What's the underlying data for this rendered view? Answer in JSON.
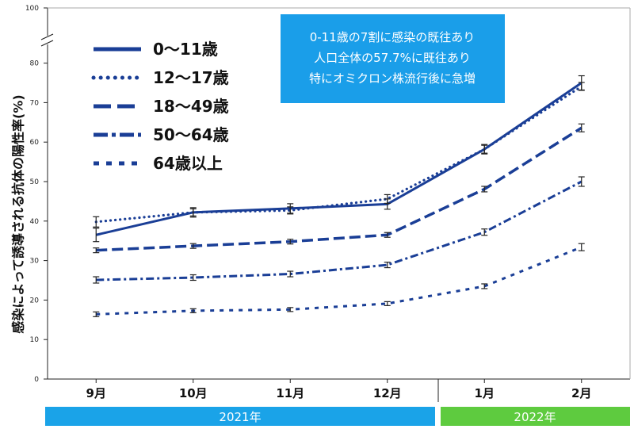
{
  "chart_data": {
    "type": "line",
    "ylabel": "感染によって誘導される抗体の陽性率(%)",
    "categories": [
      "9月",
      "10月",
      "11月",
      "12月",
      "1月",
      "2月"
    ],
    "y_ticks": [
      "0",
      "10",
      "20",
      "30",
      "40",
      "50",
      "60",
      "70",
      "80"
    ],
    "y_top_tick": "100",
    "ylim": [
      0,
      100
    ],
    "axis_break": true,
    "grid": false,
    "legend_position": "top-left",
    "series": [
      {
        "name": "0〜11歳",
        "style": "solid",
        "values": [
          36.5,
          42.2,
          43.2,
          44.3,
          58.2,
          75.0
        ],
        "errors": [
          1.7,
          1.2,
          1.2,
          1.3,
          1.2,
          1.8
        ]
      },
      {
        "name": "12〜17歳",
        "style": "dotted",
        "values": [
          39.8,
          42.2,
          42.7,
          45.6,
          58.2,
          74.1
        ],
        "errors": [
          1.3,
          0.9,
          0.9,
          1.1,
          1.0,
          1.0
        ]
      },
      {
        "name": "18〜49歳",
        "style": "long-dash",
        "values": [
          32.6,
          33.7,
          34.8,
          36.5,
          48.1,
          63.6
        ],
        "errors": [
          0.6,
          0.6,
          0.6,
          0.6,
          0.7,
          1.0
        ]
      },
      {
        "name": "50〜64歳",
        "style": "dash-dot",
        "values": [
          25.1,
          25.7,
          26.6,
          28.9,
          37.2,
          50.0
        ],
        "errors": [
          0.8,
          0.7,
          0.7,
          0.7,
          0.8,
          1.2
        ]
      },
      {
        "name": "64歳以上",
        "style": "short-dash",
        "values": [
          16.4,
          17.3,
          17.6,
          19.1,
          23.5,
          33.4
        ],
        "errors": [
          0.6,
          0.5,
          0.5,
          0.5,
          0.6,
          0.9
        ]
      }
    ],
    "series_color": "#1a3e96",
    "annotation": {
      "lines": [
        "0-11歳の7割に感染の既往あり",
        "人口全体の57.7%に既往あり",
        "特にオミクロン株流行後に急増"
      ],
      "background": "#1a9ee9",
      "text_color": "#ffffff"
    },
    "year_bands": [
      {
        "label": "2021年",
        "color": "#1aa3e8",
        "categories": [
          "9月",
          "10月",
          "11月",
          "12月"
        ]
      },
      {
        "label": "2022年",
        "color": "#5ecb3f",
        "categories": [
          "1月",
          "2月"
        ]
      }
    ]
  }
}
